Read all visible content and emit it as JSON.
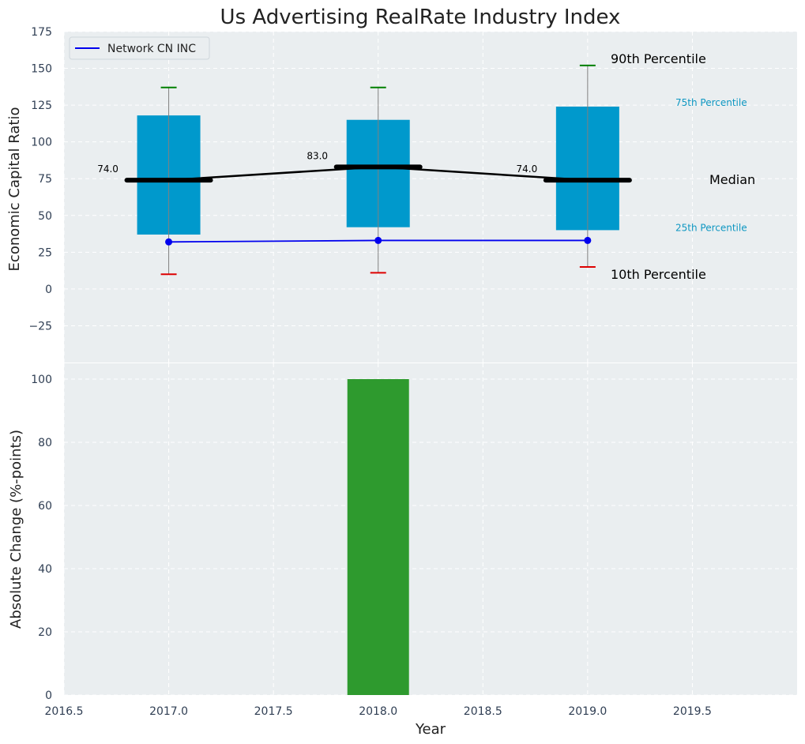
{
  "chart_data": [
    {
      "type": "box-range",
      "title": "Us Advertising RealRate Industry Index",
      "ylabel": "Economic Capital Ratio",
      "ylim": [
        -50,
        175
      ],
      "yticks": [
        175,
        150,
        125,
        100,
        75,
        50,
        25,
        0,
        -25
      ],
      "ytick_labels": [
        "175",
        "150",
        "125",
        "100",
        "75",
        "50",
        "25",
        "0",
        "−25"
      ],
      "xlim": [
        2016.5,
        2020.0
      ],
      "grid": true,
      "legend": {
        "placement": "top-left",
        "entries": [
          {
            "name": "Network CN INC",
            "color": "#0000ee"
          }
        ]
      },
      "years": [
        2017,
        2018,
        2019
      ],
      "p10": [
        10,
        11,
        15
      ],
      "p25": [
        37,
        42,
        40
      ],
      "median": [
        74,
        83,
        74
      ],
      "median_labels": [
        "74.0",
        "83.0",
        "74.0"
      ],
      "p75": [
        118,
        115,
        124
      ],
      "p90": [
        137,
        137,
        152
      ],
      "company_series": {
        "name": "Network CN INC",
        "values": [
          32,
          33,
          33
        ]
      },
      "annotations": {
        "p90": "90th Percentile",
        "p75": "75th Percentile",
        "median": "Median",
        "p25": "25th Percentile",
        "p10": "10th Percentile"
      },
      "colors": {
        "box": "#0099cc",
        "median": "#000000",
        "company": "#0000ee",
        "p90_cap": "#008000",
        "p10_cap": "#dd0000",
        "whisker": "#808080",
        "small_annotation": "#0e97c2"
      }
    },
    {
      "type": "bar",
      "xlabel": "Year",
      "ylabel": "Absolute Change (%-points)",
      "ylim": [
        0,
        105
      ],
      "yticks": [
        0,
        20,
        40,
        60,
        80,
        100
      ],
      "ytick_labels": [
        "0",
        "20",
        "40",
        "60",
        "80",
        "100"
      ],
      "xlim": [
        2016.5,
        2020.0
      ],
      "xticks": [
        2016.5,
        2017.0,
        2017.5,
        2018.0,
        2018.5,
        2019.0,
        2019.5
      ],
      "xtick_labels": [
        "2016.5",
        "2017.0",
        "2017.5",
        "2018.0",
        "2018.5",
        "2019.0",
        "2019.5"
      ],
      "grid": true,
      "x": [
        2018
      ],
      "values": [
        100
      ],
      "colors": {
        "bar": "#2e9a2e"
      }
    }
  ]
}
